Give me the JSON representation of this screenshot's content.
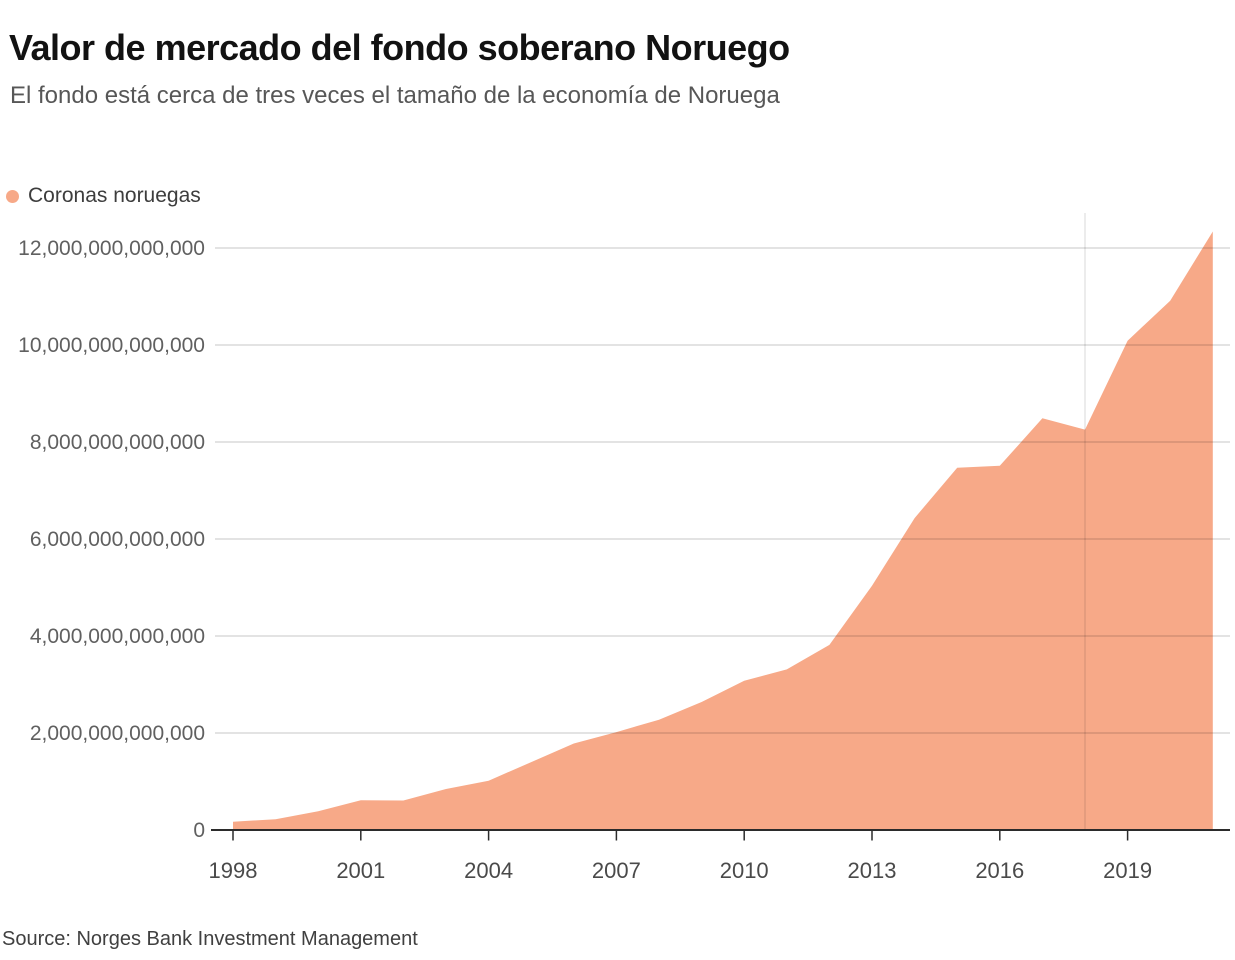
{
  "header": {
    "title": "Valor de mercado del fondo soberano Noruego",
    "subtitle": "El fondo está cerca de tres veces el tamaño de la economía de Noruega"
  },
  "legend": {
    "label": "Coronas noruegas"
  },
  "chart_data": {
    "type": "area",
    "title": "Valor de mercado del fondo soberano Noruego",
    "subtitle": "El fondo está cerca de tres veces el tamaño de la economía de Noruega",
    "series": [
      {
        "name": "Coronas noruegas",
        "x": [
          1998,
          1999,
          2000,
          2001,
          2002,
          2003,
          2004,
          2005,
          2006,
          2007,
          2008,
          2009,
          2010,
          2011,
          2012,
          2013,
          2014,
          2015,
          2016,
          2017,
          2018,
          2019,
          2020,
          2021
        ],
        "values": [
          172000000000,
          222000000000,
          386000000000,
          614000000000,
          609000000000,
          845000000000,
          1016000000000,
          1399000000000,
          1784000000000,
          2019000000000,
          2275000000000,
          2640000000000,
          3077000000000,
          3312000000000,
          3816000000000,
          5038000000000,
          6431000000000,
          7471000000000,
          7510000000000,
          8488000000000,
          8256000000000,
          10088000000000,
          10914000000000,
          12340000000000
        ]
      }
    ],
    "xlabel": "",
    "ylabel": "",
    "xlim": [
      1998,
      2021
    ],
    "ylim": [
      0,
      12400000000000
    ],
    "grid": "horizontal",
    "legend_position": "top-left",
    "x_ticks": [
      1998,
      2001,
      2004,
      2007,
      2010,
      2013,
      2016,
      2019
    ],
    "y_ticks": [
      {
        "value": 0,
        "label": "0"
      },
      {
        "value": 2000000000000,
        "label": "2,000,000,000,000"
      },
      {
        "value": 4000000000000,
        "label": "4,000,000,000,000"
      },
      {
        "value": 6000000000000,
        "label": "6,000,000,000,000"
      },
      {
        "value": 8000000000000,
        "label": "8,000,000,000,000"
      },
      {
        "value": 10000000000000,
        "label": "10,000,000,000,000"
      },
      {
        "value": 12000000000000,
        "label": "12,000,000,000,000"
      }
    ],
    "marker_line_x": 2018,
    "area_color": "#F7A988",
    "grid_color": "#C9C9C9",
    "axis_color": "#2b2b2b",
    "y_label_color": "#606060",
    "x_label_color": "#4a4a4a"
  },
  "footer": {
    "source": "Source: Norges Bank Investment Management"
  }
}
